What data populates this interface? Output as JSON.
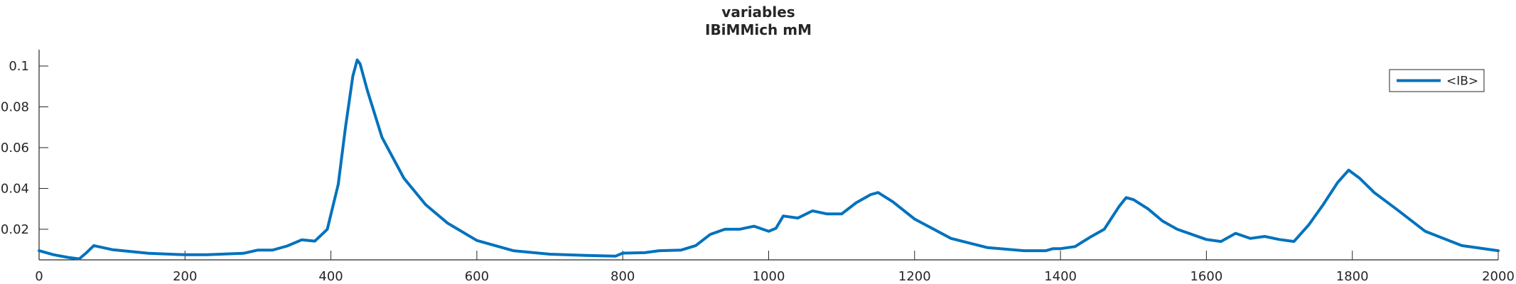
{
  "chart_data": {
    "type": "line",
    "title": "variables",
    "subtitle": "IBiMMich mM",
    "xlabel": "",
    "ylabel": "",
    "xlim": [
      0,
      2000
    ],
    "ylim": [
      0.005,
      0.108
    ],
    "xticks": [
      0,
      200,
      400,
      600,
      800,
      1000,
      1200,
      1400,
      1600,
      1800,
      2000
    ],
    "xtick_labels": [
      "0",
      "200",
      "400",
      "600",
      "800",
      "1000",
      "1200",
      "1400",
      "1600",
      "1800",
      "2000"
    ],
    "yticks": [
      0.02,
      0.04,
      0.06,
      0.08,
      0.1
    ],
    "ytick_labels": [
      "0.02",
      "0.04",
      "0.06",
      "0.08",
      "0.1"
    ],
    "grid": false,
    "legend_position": "top-right",
    "series": [
      {
        "name": "<IB>",
        "color": "#0072BD",
        "x": [
          0,
          20,
          40,
          55,
          65,
          75,
          100,
          150,
          200,
          230,
          280,
          300,
          320,
          340,
          360,
          378,
          395,
          410,
          420,
          430,
          436,
          440,
          450,
          470,
          500,
          530,
          560,
          600,
          650,
          700,
          750,
          790,
          800,
          830,
          850,
          880,
          900,
          920,
          940,
          960,
          980,
          1000,
          1010,
          1020,
          1040,
          1060,
          1080,
          1100,
          1120,
          1140,
          1150,
          1170,
          1200,
          1250,
          1300,
          1350,
          1380,
          1390,
          1400,
          1420,
          1440,
          1460,
          1480,
          1490,
          1500,
          1520,
          1540,
          1560,
          1600,
          1620,
          1640,
          1660,
          1680,
          1700,
          1720,
          1740,
          1760,
          1780,
          1795,
          1810,
          1830,
          1860,
          1900,
          1950,
          2000
        ],
        "y": [
          0.0095,
          0.0075,
          0.0062,
          0.0055,
          0.0085,
          0.012,
          0.01,
          0.0082,
          0.0075,
          0.0075,
          0.0082,
          0.0098,
          0.0098,
          0.0118,
          0.0148,
          0.0142,
          0.02,
          0.042,
          0.07,
          0.095,
          0.103,
          0.101,
          0.088,
          0.065,
          0.045,
          0.032,
          0.023,
          0.0145,
          0.0095,
          0.0078,
          0.0072,
          0.0068,
          0.0083,
          0.0085,
          0.0095,
          0.0098,
          0.012,
          0.0175,
          0.02,
          0.02,
          0.0215,
          0.019,
          0.0205,
          0.0265,
          0.0255,
          0.029,
          0.0275,
          0.0275,
          0.033,
          0.037,
          0.038,
          0.0335,
          0.025,
          0.0155,
          0.011,
          0.0095,
          0.0095,
          0.0105,
          0.0105,
          0.0115,
          0.016,
          0.02,
          0.031,
          0.0355,
          0.0345,
          0.03,
          0.024,
          0.02,
          0.015,
          0.014,
          0.018,
          0.0155,
          0.0165,
          0.015,
          0.014,
          0.022,
          0.032,
          0.043,
          0.049,
          0.045,
          0.038,
          0.03,
          0.019,
          0.012,
          0.0095
        ]
      }
    ]
  }
}
